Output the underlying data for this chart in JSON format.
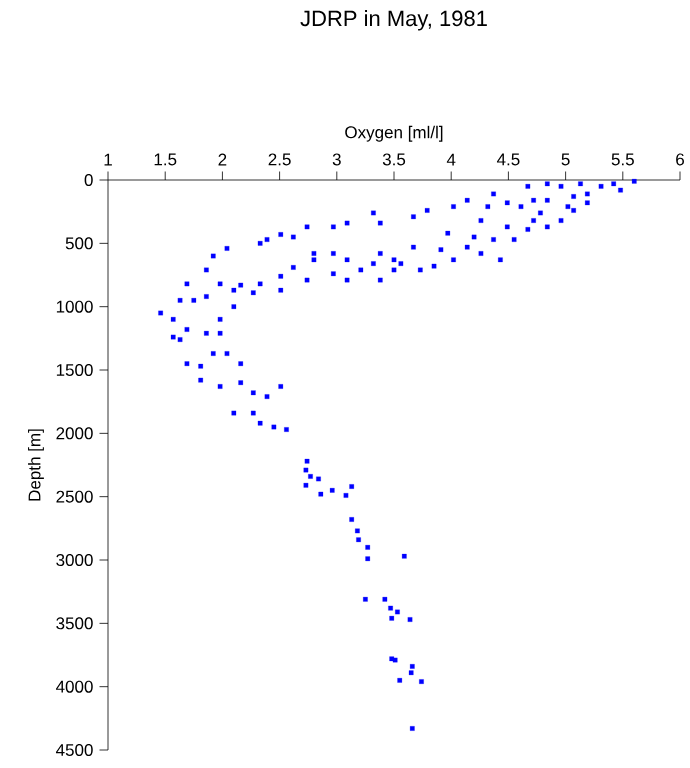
{
  "chart_data": {
    "type": "scatter",
    "title": "JDRP in May, 1981",
    "xlabel": "Oxygen [ml/l]",
    "ylabel": "Depth [m]",
    "xlim": [
      1,
      6
    ],
    "xticks": [
      1,
      1.5,
      2,
      2.5,
      3,
      3.5,
      4,
      4.5,
      5,
      5.5,
      6
    ],
    "ylim": [
      4500,
      0
    ],
    "yticks": [
      0,
      500,
      1000,
      1500,
      2000,
      2500,
      3000,
      3500,
      4000,
      4500
    ],
    "grid": false,
    "marker": "square",
    "series": [
      {
        "color": "#0000ff",
        "x": [
          4.84,
          4.96,
          5.13,
          5.31,
          5.42,
          5.6,
          5.48,
          5.19,
          4.84,
          5.02,
          4.78,
          4.96,
          5.07,
          4.72,
          4.67,
          4.37,
          4.61,
          4.49,
          4.26,
          4.14,
          4.02,
          3.79,
          3.67,
          3.32,
          3.38,
          3.09,
          2.97,
          2.74,
          2.62,
          2.51,
          2.33,
          2.39,
          2.04,
          1.92,
          1.86,
          4.37,
          4.14,
          3.91,
          3.67,
          3.5,
          3.32,
          3.09,
          2.97,
          2.8,
          2.62,
          2.51,
          2.33,
          2.16,
          1.98,
          1.69,
          1.63,
          1.46,
          1.57,
          1.75,
          1.86,
          2.1,
          1.98,
          1.57,
          1.63,
          1.69,
          1.86,
          1.98,
          1.69,
          1.81,
          1.92,
          2.04,
          2.16,
          1.81,
          1.98,
          2.16,
          2.27,
          2.39,
          2.51,
          2.1,
          2.27,
          2.33,
          2.45,
          2.56,
          3.21,
          3.38,
          3.56,
          3.73,
          3.85,
          4.02,
          4.26,
          4.43,
          4.55,
          4.67,
          4.84,
          3.38,
          2.97,
          2.74,
          2.51,
          2.27,
          2.1,
          3.09,
          3.5,
          3.97,
          4.2,
          4.32,
          4.49,
          4.72,
          5.19,
          5.07,
          2.8,
          2.74,
          2.73,
          2.77,
          2.84,
          2.73,
          2.86,
          2.96,
          3.08,
          3.13,
          3.13,
          3.18,
          3.19,
          3.27,
          3.27,
          3.59,
          3.25,
          3.42,
          3.47,
          3.53,
          3.48,
          3.64,
          3.48,
          3.51,
          3.66,
          3.65,
          3.55,
          3.74,
          3.66
        ],
        "values": [
          30,
          50,
          30,
          50,
          30,
          10,
          80,
          110,
          160,
          210,
          260,
          320,
          240,
          320,
          50,
          110,
          210,
          370,
          320,
          160,
          210,
          240,
          290,
          260,
          340,
          340,
          370,
          370,
          450,
          430,
          500,
          470,
          540,
          600,
          710,
          470,
          530,
          550,
          530,
          630,
          660,
          630,
          580,
          630,
          690,
          760,
          820,
          830,
          820,
          820,
          950,
          1050,
          1100,
          950,
          920,
          1000,
          1100,
          1240,
          1260,
          1180,
          1210,
          1210,
          1450,
          1470,
          1370,
          1370,
          1450,
          1580,
          1630,
          1600,
          1680,
          1710,
          1630,
          1840,
          1840,
          1920,
          1950,
          1970,
          710,
          790,
          660,
          710,
          680,
          630,
          580,
          630,
          470,
          390,
          370,
          580,
          740,
          790,
          870,
          890,
          870,
          790,
          710,
          420,
          450,
          210,
          180,
          160,
          180,
          130,
          580,
          2220,
          2290,
          2340,
          2360,
          2410,
          2480,
          2450,
          2490,
          2420,
          2680,
          2770,
          2840,
          2900,
          2990,
          2970,
          3310,
          3310,
          3380,
          3410,
          3460,
          3470,
          3780,
          3790,
          3840,
          3890,
          3950,
          3960,
          4330
        ]
      }
    ]
  }
}
